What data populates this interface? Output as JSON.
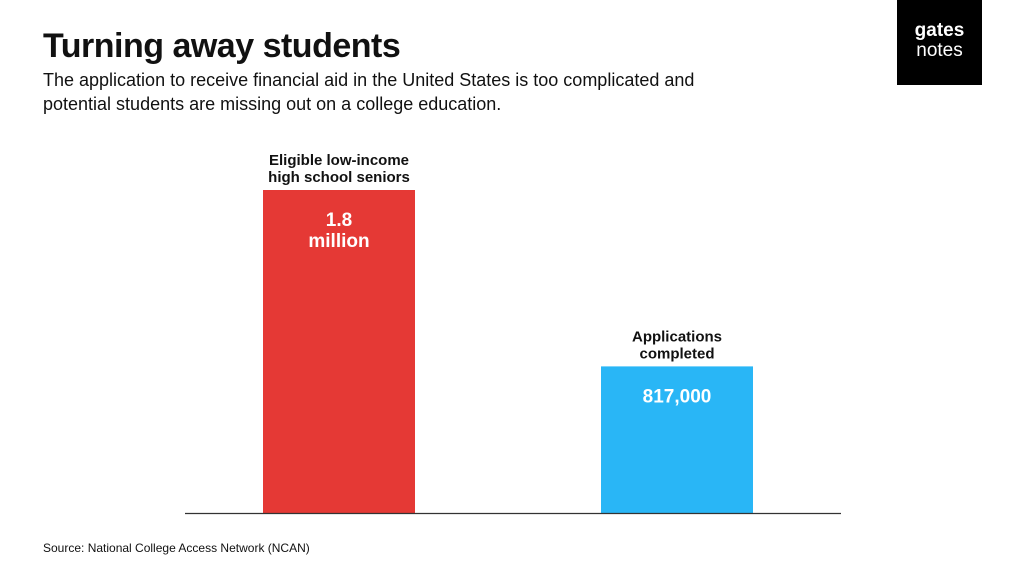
{
  "header": {
    "title": "Turning away students",
    "subtitle": "The application to receive financial aid in the United States is too complicated and potential students are missing out on a college education."
  },
  "logo": {
    "line1": "gates",
    "line2": "notes"
  },
  "footer": {
    "source": "Source: National College Access Network (NCAN)"
  },
  "chart_data": {
    "type": "bar",
    "categories": [
      "Eligible low-income high school seniors",
      "Applications completed"
    ],
    "category_label_lines": [
      [
        "Eligible low-income",
        "high school seniors"
      ],
      [
        "Applications",
        "completed"
      ]
    ],
    "values": [
      1800000,
      817000
    ],
    "value_label_lines": [
      [
        "1.8",
        "million"
      ],
      [
        "817,000"
      ]
    ],
    "colors": [
      "#e53935",
      "#29b6f6"
    ],
    "ylim": [
      0,
      1800000
    ],
    "grid": false,
    "title": "",
    "xlabel": "",
    "ylabel": ""
  }
}
